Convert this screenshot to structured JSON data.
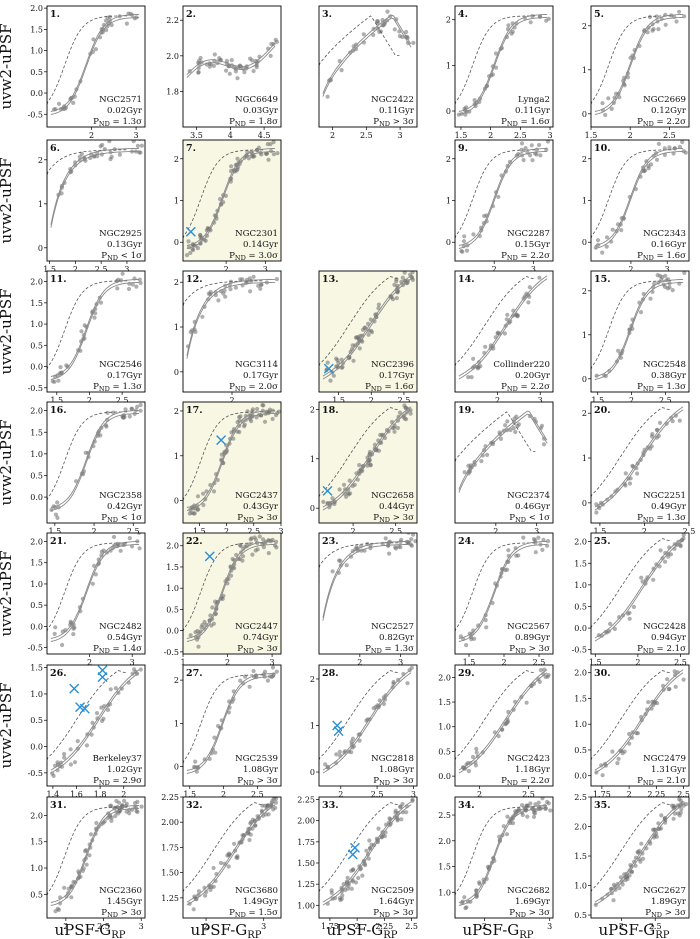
{
  "figure": {
    "ylabel": "uvw2-uPSF",
    "xlabel": "uPSF-G",
    "xlabel_sub": "RP",
    "pnd_prefix": "P",
    "pnd_sub": "ND"
  },
  "colors": {
    "points": "#6e6e6e",
    "isochrone": "#8a8a8a",
    "dashed": "#555555",
    "cross": "#2a8fd6",
    "highlight": "#f7f7e4",
    "frame": "#000000"
  },
  "chart_data": [
    {
      "type": "scatter",
      "n": 1,
      "name": "NGC2571",
      "age": "0.02Gyr",
      "pnd": " = 1.3σ",
      "highlight": false,
      "xlim": [
        1.0,
        3.2
      ],
      "ylim": [
        -0.8,
        2.05
      ],
      "xticks": [
        2,
        3
      ],
      "yticks": [
        -0.5,
        0.0,
        0.5,
        1.0,
        1.5,
        2.0
      ],
      "yfmt": 1,
      "shape": "s",
      "crosses": []
    },
    {
      "type": "scatter",
      "n": 2,
      "name": "NGC6649",
      "age": "0.03Gyr",
      "pnd": " = 1.8σ",
      "highlight": false,
      "xlim": [
        3.3,
        4.75
      ],
      "ylim": [
        1.6,
        2.28
      ],
      "xticks": [
        3.5,
        4.0,
        4.5
      ],
      "yticks": [
        1.8,
        2.0,
        2.2
      ],
      "yfmt": 1,
      "shape": "cloud",
      "crosses": []
    },
    {
      "type": "scatter",
      "n": 3,
      "name": "NGC2422",
      "age": "0.11Gyr",
      "pnd": " > 3σ",
      "highlight": false,
      "xlim": [
        1.8,
        3.25
      ],
      "ylim": [
        -0.8,
        2.08
      ],
      "xticks": [
        2.0,
        2.5,
        3.0
      ],
      "yticks": [],
      "yfmt": 1,
      "shape": "hump",
      "crosses": []
    },
    {
      "type": "scatter",
      "n": 4,
      "name": "Lynga2",
      "age": "0.11Gyr",
      "pnd": " = 1.6σ",
      "highlight": false,
      "xlim": [
        1.4,
        3.05
      ],
      "ylim": [
        -0.35,
        2.3
      ],
      "xticks": [
        1.5,
        2.0,
        2.5,
        3.0
      ],
      "yticks": [
        0,
        1,
        2
      ],
      "yfmt": 0,
      "shape": "s",
      "crosses": []
    },
    {
      "type": "scatter",
      "n": 5,
      "name": "NGC2669",
      "age": "0.12Gyr",
      "pnd": " = 2.2σ",
      "highlight": false,
      "xlim": [
        1.5,
        2.75
      ],
      "ylim": [
        -0.3,
        2.45
      ],
      "xticks": [
        1.5,
        2.0,
        2.5
      ],
      "yticks": [
        0,
        1,
        2
      ],
      "yfmt": 0,
      "shape": "s",
      "crosses": []
    },
    {
      "type": "scatter",
      "n": 6,
      "name": "NGC2925",
      "age": "0.13Gyr",
      "pnd": " < 1σ",
      "highlight": false,
      "xlim": [
        1.45,
        3.35
      ],
      "ylim": [
        -0.3,
        2.45
      ],
      "xticks": [
        1.5,
        2.0,
        2.5,
        3.0
      ],
      "yticks": [
        0,
        1,
        2
      ],
      "yfmt": 0,
      "shape": "fast",
      "crosses": []
    },
    {
      "type": "scatter",
      "n": 7,
      "name": "NGC2301",
      "age": "0.14Gyr",
      "pnd": " = 3.0σ",
      "highlight": true,
      "xlim": [
        0.9,
        3.4
      ],
      "ylim": [
        -0.45,
        2.45
      ],
      "xticks": [
        2,
        3
      ],
      "yticks": [
        0,
        1,
        2
      ],
      "yfmt": 0,
      "shape": "s",
      "crosses": [
        [
          1.1,
          0.25
        ]
      ]
    },
    null,
    {
      "type": "scatter",
      "n": 9,
      "name": "NGC2287",
      "age": "0.15Gyr",
      "pnd": " = 2.2σ",
      "highlight": false,
      "xlim": [
        1.0,
        3.5
      ],
      "ylim": [
        -0.45,
        2.45
      ],
      "xticks": [
        2,
        3
      ],
      "yticks": [
        0,
        1,
        2
      ],
      "yfmt": 0,
      "shape": "s",
      "crosses": []
    },
    {
      "type": "scatter",
      "n": 10,
      "name": "NGC2343",
      "age": "0.16Gyr",
      "pnd": " = 1.6σ",
      "highlight": false,
      "xlim": [
        0.9,
        3.6
      ],
      "ylim": [
        -0.45,
        2.45
      ],
      "xticks": [
        2,
        3
      ],
      "yticks": [
        0,
        1,
        2
      ],
      "yfmt": 0,
      "shape": "s",
      "crosses": []
    },
    {
      "type": "scatter",
      "n": 11,
      "name": "NGC2546",
      "age": "0.17Gyr",
      "pnd": " = 1.3σ",
      "highlight": false,
      "xlim": [
        1.35,
        2.85
      ],
      "ylim": [
        -0.6,
        2.25
      ],
      "xticks": [
        1.5,
        2.0,
        2.5
      ],
      "yticks": [
        -0.5,
        0.0,
        0.5,
        1.0,
        1.5,
        2.0
      ],
      "yfmt": 1,
      "shape": "s",
      "crosses": []
    },
    {
      "type": "scatter",
      "n": 12,
      "name": "NGC3114",
      "age": "0.17Gyr",
      "pnd": " = 2.0σ",
      "highlight": false,
      "xlim": [
        1.0,
        3.0
      ],
      "ylim": [
        -0.45,
        2.25
      ],
      "xticks": [
        2
      ],
      "yticks": [
        0,
        1,
        2
      ],
      "yfmt": 0,
      "shape": "fast",
      "crosses": []
    },
    {
      "type": "scatter",
      "n": 13,
      "name": "NGC2396",
      "age": "0.17Gyr",
      "pnd": " = 1.6σ",
      "highlight": true,
      "xlim": [
        1.2,
        2.7
      ],
      "ylim": [
        -0.55,
        2.3
      ],
      "xticks": [
        1.5,
        2.0,
        2.5
      ],
      "yticks": [],
      "yfmt": 1,
      "shape": "lin",
      "crosses": [
        [
          1.35,
          0.0
        ]
      ]
    },
    {
      "type": "scatter",
      "n": 14,
      "name": "Collinder220",
      "age": "0.20Gyr",
      "pnd": " = 2.2σ",
      "highlight": false,
      "xlim": [
        1.0,
        3.3
      ],
      "ylim": [
        -0.6,
        2.25
      ],
      "xticks": [
        2,
        3
      ],
      "yticks": [],
      "yfmt": 1,
      "shape": "lin",
      "crosses": []
    },
    {
      "type": "scatter",
      "n": 15,
      "name": "NGC2548",
      "age": "0.38Gyr",
      "pnd": " = 1.3σ",
      "highlight": false,
      "xlim": [
        1.4,
        2.85
      ],
      "ylim": [
        -0.3,
        2.45
      ],
      "xticks": [
        1.5,
        2.0,
        2.5
      ],
      "yticks": [
        0,
        1,
        2
      ],
      "yfmt": 0,
      "shape": "s",
      "crosses": []
    },
    {
      "type": "scatter",
      "n": 16,
      "name": "NGC2358",
      "age": "0.42Gyr",
      "pnd": " < 1σ",
      "highlight": false,
      "xlim": [
        1.4,
        2.65
      ],
      "ylim": [
        -0.6,
        2.2
      ],
      "xticks": [
        1.5,
        2.0,
        2.5
      ],
      "yticks": [
        0.0,
        0.5,
        1.0,
        1.5,
        2.0
      ],
      "yfmt": 1,
      "shape": "s",
      "crosses": []
    },
    {
      "type": "scatter",
      "n": 17,
      "name": "NGC2437",
      "age": "0.43Gyr",
      "pnd": " > 3σ",
      "highlight": true,
      "xlim": [
        1.2,
        3.0
      ],
      "ylim": [
        -0.5,
        2.2
      ],
      "xticks": [
        1.5,
        2.0,
        2.5,
        3.0
      ],
      "yticks": [
        0,
        1,
        2
      ],
      "yfmt": 0,
      "shape": "s",
      "crosses": [
        [
          1.9,
          1.35
        ]
      ]
    },
    {
      "type": "scatter",
      "n": 18,
      "name": "NGC2658",
      "age": "0.44Gyr",
      "pnd": " > 3σ",
      "highlight": true,
      "xlim": [
        1.6,
        2.75
      ],
      "ylim": [
        -0.3,
        2.15
      ],
      "xticks": [
        2.0,
        2.5
      ],
      "yticks": [
        0,
        1,
        2
      ],
      "yfmt": 0,
      "shape": "lin",
      "crosses": [
        [
          1.7,
          0.35
        ]
      ]
    },
    {
      "type": "scatter",
      "n": 19,
      "name": "NGC2374",
      "age": "0.46Gyr",
      "pnd": " < 1σ",
      "highlight": false,
      "xlim": [
        1.0,
        3.4
      ],
      "ylim": [
        -0.45,
        2.3
      ],
      "xticks": [
        2,
        3
      ],
      "yticks": [],
      "yfmt": 0,
      "shape": "hump",
      "crosses": []
    },
    {
      "type": "scatter",
      "n": 20,
      "name": "NGC2251",
      "age": "0.49Gyr",
      "pnd": " = 1.3σ",
      "highlight": false,
      "xlim": [
        1.4,
        2.5
      ],
      "ylim": [
        -0.45,
        2.25
      ],
      "xticks": [
        1.5,
        2.0,
        2.5
      ],
      "yticks": [
        0,
        1,
        2
      ],
      "yfmt": 0,
      "shape": "lin",
      "crosses": []
    },
    {
      "type": "scatter",
      "n": 21,
      "name": "NGC2482",
      "age": "0.54Gyr",
      "pnd": " = 1.4σ",
      "highlight": false,
      "xlim": [
        1.0,
        3.3
      ],
      "ylim": [
        -0.65,
        2.2
      ],
      "xticks": [
        2,
        3
      ],
      "yticks": [
        -0.5,
        0.0,
        0.5,
        1.0,
        1.5,
        2.0
      ],
      "yfmt": 1,
      "shape": "s",
      "crosses": []
    },
    {
      "type": "scatter",
      "n": 22,
      "name": "NGC2447",
      "age": "0.74Gyr",
      "pnd": " > 3σ",
      "highlight": true,
      "xlim": [
        1.0,
        3.2
      ],
      "ylim": [
        -0.55,
        2.3
      ],
      "xticks": [
        1,
        2,
        3
      ],
      "yticks": [
        -0.5,
        0.0,
        0.5,
        1.0,
        1.5,
        2.0
      ],
      "yfmt": 1,
      "shape": "s",
      "crosses": [
        [
          1.6,
          1.75
        ]
      ]
    },
    {
      "type": "scatter",
      "n": 23,
      "name": "NGC2527",
      "age": "0.82Gyr",
      "pnd": " = 1.3σ",
      "highlight": false,
      "xlim": [
        1.0,
        3.4
      ],
      "ylim": [
        -0.65,
        2.3
      ],
      "xticks": [
        2,
        3
      ],
      "yticks": [],
      "yfmt": 0,
      "shape": "fast",
      "crosses": []
    },
    {
      "type": "scatter",
      "n": 24,
      "name": "NGC2567",
      "age": "0.89Gyr",
      "pnd": " > 3σ",
      "highlight": false,
      "xlim": [
        1.3,
        2.7
      ],
      "ylim": [
        -0.65,
        2.25
      ],
      "xticks": [
        1.5,
        2.0,
        2.5
      ],
      "yticks": [],
      "yfmt": 0,
      "shape": "s",
      "crosses": []
    },
    {
      "type": "scatter",
      "n": 25,
      "name": "NGC2428",
      "age": "0.94Gyr",
      "pnd": " = 2.1σ",
      "highlight": false,
      "xlim": [
        1.45,
        2.6
      ],
      "ylim": [
        -0.6,
        2.2
      ],
      "xticks": [
        1.5,
        2.0,
        2.5
      ],
      "yticks": [
        -0.5,
        0.0,
        0.5,
        1.0,
        1.5,
        2.0
      ],
      "yfmt": 1,
      "shape": "lin",
      "crosses": []
    },
    {
      "type": "scatter",
      "n": 26,
      "name": "Berkeley37",
      "age": "1.02Gyr",
      "pnd": " = 2.9σ",
      "highlight": false,
      "xlim": [
        1.35,
        2.18
      ],
      "ylim": [
        -0.75,
        1.55
      ],
      "xticks": [
        1.4,
        1.6,
        1.8,
        2.0
      ],
      "yticks": [
        -0.5,
        0.0,
        0.5,
        1.0,
        1.5
      ],
      "yfmt": 1,
      "shape": "lin",
      "crosses": [
        [
          1.58,
          1.1
        ],
        [
          1.63,
          0.75
        ],
        [
          1.67,
          0.72
        ],
        [
          1.82,
          1.45
        ],
        [
          1.82,
          1.32
        ]
      ]
    },
    {
      "type": "scatter",
      "n": 27,
      "name": "NGC2539",
      "age": "1.08Gyr",
      "pnd": " > 3σ",
      "highlight": false,
      "xlim": [
        1.4,
        2.85
      ],
      "ylim": [
        -0.45,
        2.35
      ],
      "xticks": [
        1.5,
        2.0,
        2.5
      ],
      "yticks": [
        0,
        1,
        2
      ],
      "yfmt": 0,
      "shape": "s",
      "crosses": []
    },
    {
      "type": "scatter",
      "n": 28,
      "name": "NGC2818",
      "age": "1.08Gyr",
      "pnd": " > 3σ",
      "highlight": false,
      "xlim": [
        1.7,
        3.05
      ],
      "ylim": [
        -0.3,
        2.3
      ],
      "xticks": [
        2.0,
        2.5,
        3.0
      ],
      "yticks": [
        0,
        1,
        2
      ],
      "yfmt": 0,
      "shape": "lin",
      "crosses": [
        [
          1.95,
          1.0
        ],
        [
          1.97,
          0.88
        ]
      ]
    },
    {
      "type": "scatter",
      "n": 29,
      "name": "NGC2423",
      "age": "1.18Gyr",
      "pnd": " = 2.2σ",
      "highlight": false,
      "xlim": [
        1.75,
        2.75
      ],
      "ylim": [
        -0.2,
        2.25
      ],
      "xticks": [
        2.0,
        2.5
      ],
      "yticks": [
        0.0,
        0.5,
        1.0,
        1.5,
        2.0
      ],
      "yfmt": 1,
      "shape": "lin",
      "crosses": []
    },
    {
      "type": "scatter",
      "n": 30,
      "name": "NGC2479",
      "age": "1.31Gyr",
      "pnd": " = 2.1σ",
      "highlight": false,
      "xlim": [
        1.65,
        2.55
      ],
      "ylim": [
        -0.2,
        2.15
      ],
      "xticks": [
        1.75,
        2.0,
        2.25,
        2.5
      ],
      "yticks": [
        0.0,
        0.5,
        1.0,
        1.5,
        2.0
      ],
      "yfmt": 1,
      "shape": "lin",
      "crosses": []
    },
    {
      "type": "scatter",
      "n": 31,
      "name": "NGC2360",
      "age": "1.45Gyr",
      "pnd": " > 3σ",
      "highlight": false,
      "xlim": [
        1.75,
        3.05
      ],
      "ylim": [
        0.05,
        2.35
      ],
      "xticks": [
        2.0,
        2.5,
        3.0
      ],
      "yticks": [
        0.5,
        1.0,
        1.5,
        2.0
      ],
      "yfmt": 1,
      "shape": "s",
      "crosses": []
    },
    {
      "type": "scatter",
      "n": 32,
      "name": "NGC3680",
      "age": "1.49Gyr",
      "pnd": " = 1.5σ",
      "highlight": false,
      "xlim": [
        1.6,
        3.3
      ],
      "ylim": [
        1.05,
        2.25
      ],
      "xticks": [
        2,
        3
      ],
      "yticks": [
        1.25,
        1.5,
        1.75,
        2.0,
        2.25
      ],
      "yfmt": 2,
      "shape": "lin",
      "crosses": []
    },
    {
      "type": "scatter",
      "n": 33,
      "name": "NGC2509",
      "age": "1.64Gyr",
      "pnd": " > 3σ",
      "highlight": false,
      "xlim": [
        1.65,
        2.55
      ],
      "ylim": [
        0.85,
        2.28
      ],
      "xticks": [
        1.75,
        2.0,
        2.25,
        2.5
      ],
      "yticks": [
        1.0,
        1.25,
        1.5,
        1.75,
        2.0,
        2.25
      ],
      "yfmt": 2,
      "shape": "lin",
      "crosses": [
        [
          1.96,
          1.6
        ],
        [
          1.98,
          1.68
        ]
      ]
    },
    {
      "type": "scatter",
      "n": 34,
      "name": "NGC2682",
      "age": "1.69Gyr",
      "pnd": " > 3σ",
      "highlight": false,
      "xlim": [
        1.55,
        3.05
      ],
      "ylim": [
        0.5,
        2.85
      ],
      "xticks": [
        2,
        3
      ],
      "yticks": [
        1.0,
        1.5,
        2.0,
        2.5
      ],
      "yfmt": 1,
      "shape": "s",
      "crosses": []
    },
    {
      "type": "scatter",
      "n": 35,
      "name": "NGC2627",
      "age": "1.89Gyr",
      "pnd": " > 3σ",
      "highlight": false,
      "xlim": [
        1.55,
        3.0
      ],
      "ylim": [
        0.45,
        2.5
      ],
      "xticks": [
        2.0,
        2.5
      ],
      "yticks": [
        0.5,
        1.0,
        1.5,
        2.0,
        2.5
      ],
      "yfmt": 1,
      "shape": "lin",
      "crosses": []
    }
  ]
}
